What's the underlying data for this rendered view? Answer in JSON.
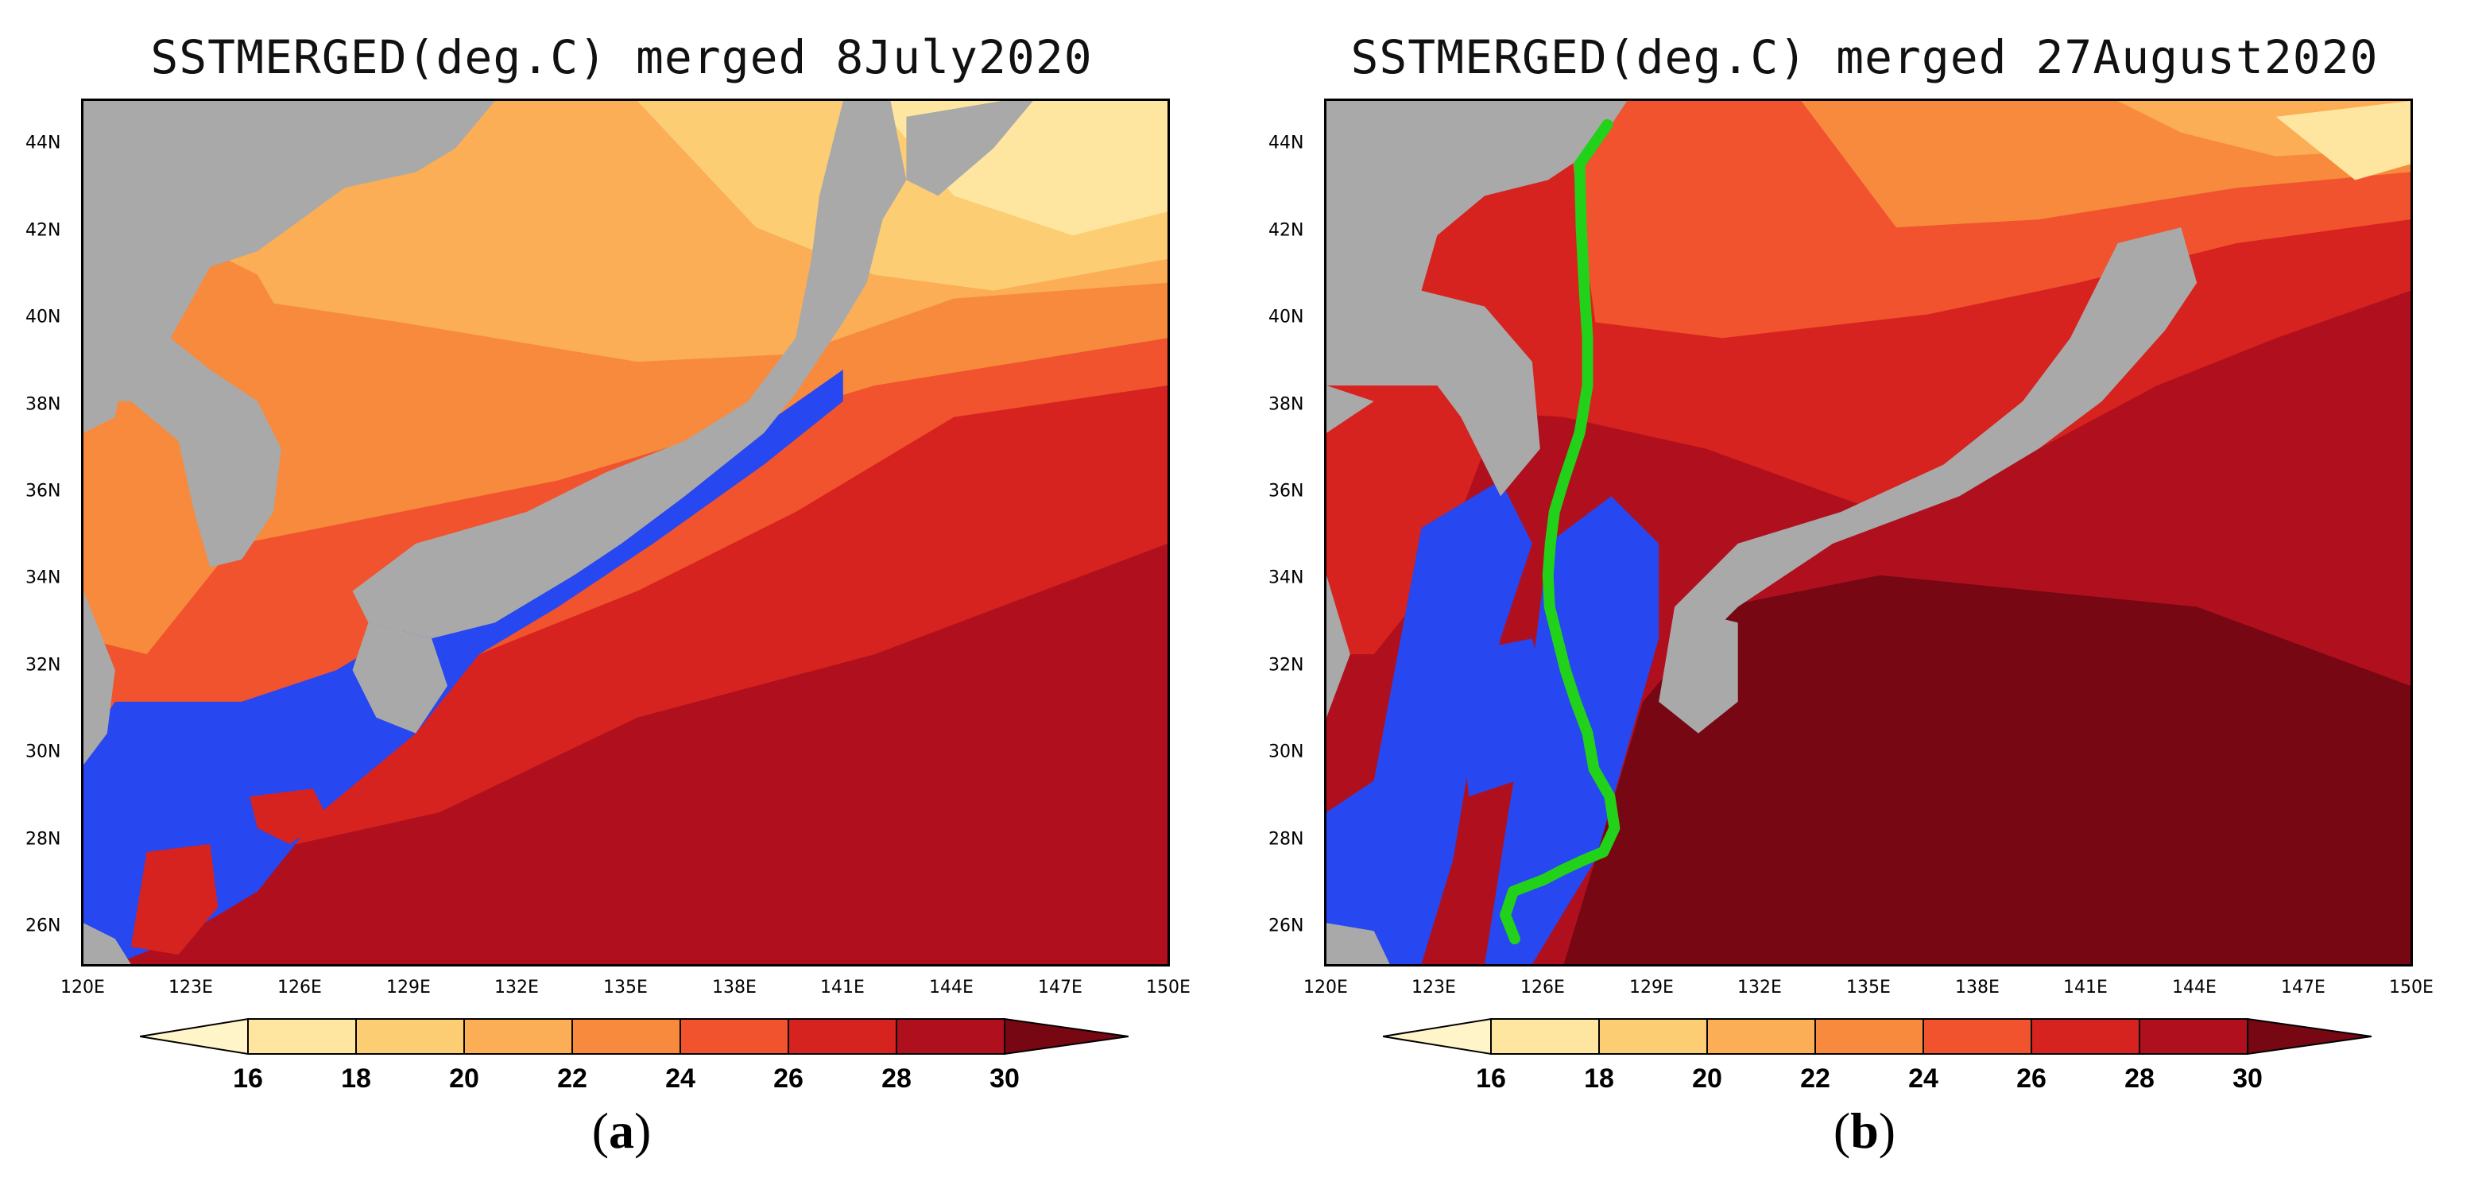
{
  "colors": {
    "land": "#a9a9a9",
    "below16": "#fff5c8",
    "c16_18": "#ffe6a0",
    "c18_20": "#fdcd74",
    "c20_22": "#fbae55",
    "c22_24": "#f78a3d",
    "c24_26": "#f0532d",
    "c26_28": "#d7231f",
    "c28_30": "#b0101e",
    "above30": "#760713",
    "blue": "#2747f0",
    "track": "#22d11a"
  },
  "panels": [
    {
      "id": "a",
      "title": "SSTMERGED(deg.C) merged 8July2020",
      "letter": "a",
      "lat_labels": [
        "44N",
        "42N",
        "40N",
        "38N",
        "36N",
        "34N",
        "32N",
        "30N",
        "28N",
        "26N"
      ],
      "lon_labels": [
        "120E",
        "123E",
        "126E",
        "129E",
        "132E",
        "135E",
        "138E",
        "141E",
        "144E",
        "147E",
        "150E"
      ]
    },
    {
      "id": "b",
      "title": "SSTMERGED(deg.C) merged 27August2020",
      "letter": "b",
      "lat_labels": [
        "44N",
        "42N",
        "40N",
        "38N",
        "36N",
        "34N",
        "32N",
        "30N",
        "28N",
        "26N"
      ],
      "lon_labels": [
        "120E",
        "123E",
        "126E",
        "129E",
        "132E",
        "135E",
        "138E",
        "141E",
        "144E",
        "147E",
        "150E"
      ]
    }
  ],
  "colorbar": {
    "labels": [
      "16",
      "18",
      "20",
      "22",
      "24",
      "26",
      "28",
      "30"
    ]
  }
}
